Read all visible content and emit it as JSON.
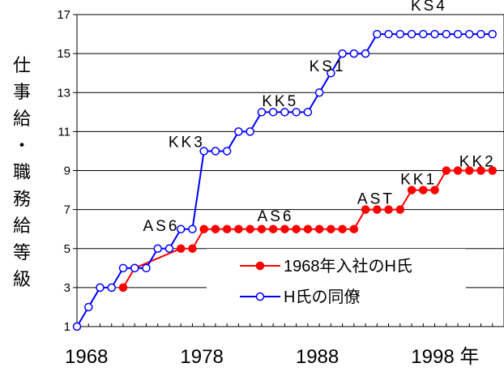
{
  "chart_data": {
    "type": "line",
    "ylabel_chars": [
      "仕",
      "事",
      "給",
      "・",
      "職",
      "務",
      "給",
      "等",
      "級"
    ],
    "x_tick_labels": [
      "1968",
      "1978",
      "1988",
      "1998 年"
    ],
    "y_ticks": [
      1,
      3,
      5,
      7,
      9,
      11,
      13,
      15,
      17
    ],
    "ylim": [
      1,
      17
    ],
    "xlim": [
      1968,
      2005
    ],
    "grid": true,
    "legend_position": "bottom-right (inside plot)",
    "series": [
      {
        "name": "1968年入社のH氏",
        "color": "#ff0000",
        "marker": "filled-circle",
        "x": [
          1972,
          1973,
          1977,
          1978,
          1979,
          1980,
          1981,
          1982,
          1983,
          1984,
          1985,
          1986,
          1987,
          1988,
          1989,
          1990,
          1991,
          1992,
          1993,
          1994,
          1995,
          1996,
          1997,
          1998,
          1999,
          2000,
          2001,
          2002,
          2003,
          2004
        ],
        "values": [
          3,
          4,
          5,
          5,
          6,
          6,
          6,
          6,
          6,
          6,
          6,
          6,
          6,
          6,
          6,
          6,
          6,
          6,
          7,
          7,
          7,
          7,
          8,
          8,
          8,
          9,
          9,
          9,
          9,
          9
        ]
      },
      {
        "name": "H氏の同僚",
        "color": "#0000ff",
        "marker": "open-circle",
        "x": [
          1968,
          1969,
          1970,
          1971,
          1972,
          1973,
          1974,
          1975,
          1976,
          1977,
          1978,
          1979,
          1980,
          1981,
          1982,
          1983,
          1984,
          1985,
          1986,
          1987,
          1988,
          1989,
          1990,
          1991,
          1992,
          1993,
          1994,
          1995,
          1996,
          1997,
          1998,
          1999,
          2000,
          2001,
          2002,
          2003,
          2004
        ],
        "values": [
          1,
          2,
          3,
          3,
          4,
          4,
          4,
          5,
          5,
          6,
          6,
          10,
          10,
          10,
          11,
          11,
          12,
          12,
          12,
          12,
          12,
          13,
          14,
          15,
          15,
          15,
          16,
          16,
          16,
          16,
          16,
          16,
          16,
          16,
          16,
          16,
          16
        ]
      }
    ],
    "annotations": [
      {
        "text": "AS6",
        "x": 1975.3,
        "y": 5.9
      },
      {
        "text": "KK3",
        "x": 1977.5,
        "y": 10.2
      },
      {
        "text": "AS6",
        "x": 1985.2,
        "y": 6.4
      },
      {
        "text": "KK5",
        "x": 1985.6,
        "y": 12.3
      },
      {
        "text": "KS1",
        "x": 1989.7,
        "y": 14.1
      },
      {
        "text": "AST",
        "x": 1993.9,
        "y": 7.3
      },
      {
        "text": "KK1",
        "x": 1997.6,
        "y": 8.3
      },
      {
        "text": "KS4",
        "x": 1998.5,
        "y": 17.2
      },
      {
        "text": "KK2",
        "x": 2002.7,
        "y": 9.2
      }
    ]
  }
}
